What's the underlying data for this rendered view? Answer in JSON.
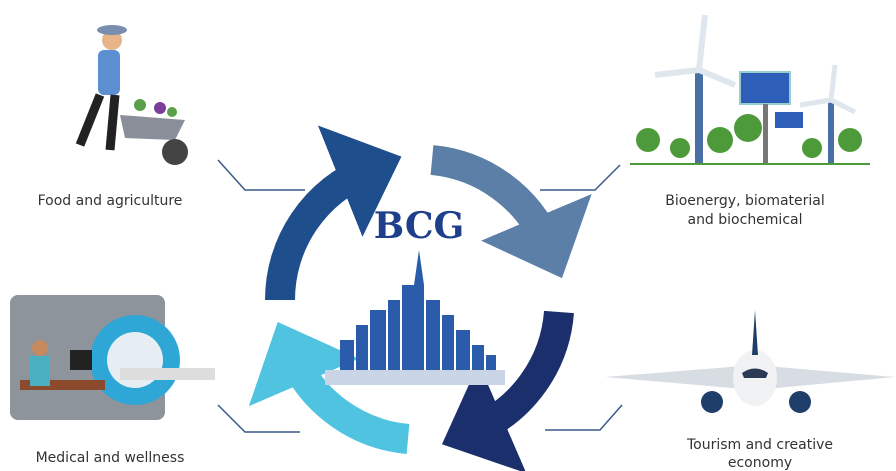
{
  "center": {
    "title": "BCG"
  },
  "labels": [
    {
      "lines": [
        "Food and agriculture"
      ]
    },
    {
      "lines": [
        "Bioenergy, biomaterial",
        "and biochemical"
      ]
    },
    {
      "lines": [
        "Medical and wellness"
      ]
    },
    {
      "lines": [
        "Tourism and creative",
        "economy"
      ]
    }
  ]
}
